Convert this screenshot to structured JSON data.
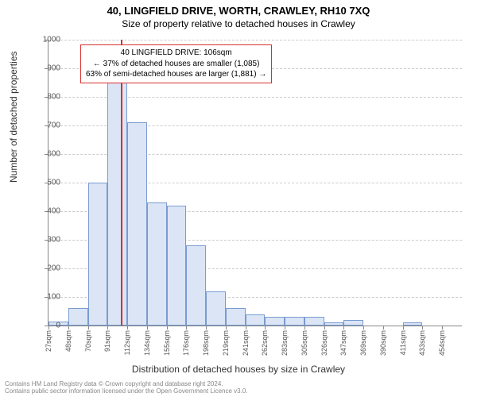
{
  "title": "40, LINGFIELD DRIVE, WORTH, CRAWLEY, RH10 7XQ",
  "subtitle": "Size of property relative to detached houses in Crawley",
  "ylabel": "Number of detached properties",
  "xlabel": "Distribution of detached houses by size in Crawley",
  "chart": {
    "type": "histogram",
    "ylim": [
      0,
      1000
    ],
    "ytick_step": 100,
    "background_color": "#ffffff",
    "grid_color": "#cccccc",
    "bar_fill": "#dbe5f5",
    "bar_border": "#7a9bd1",
    "marker_color": "#d73030",
    "marker_x": 106,
    "x_min": 27,
    "x_bin_width": 21.4,
    "bin_count": 21,
    "values": [
      15,
      60,
      500,
      850,
      710,
      430,
      420,
      280,
      120,
      60,
      40,
      30,
      30,
      30,
      10,
      20,
      0,
      0,
      10,
      0,
      0
    ],
    "xticks": [
      "27sqm",
      "48sqm",
      "70sqm",
      "91sqm",
      "112sqm",
      "134sqm",
      "155sqm",
      "176sqm",
      "198sqm",
      "219sqm",
      "241sqm",
      "262sqm",
      "283sqm",
      "305sqm",
      "326sqm",
      "347sqm",
      "369sqm",
      "390sqm",
      "411sqm",
      "433sqm",
      "454sqm"
    ]
  },
  "info_box": {
    "line1": "40 LINGFIELD DRIVE: 106sqm",
    "line2": "← 37% of detached houses are smaller (1,085)",
    "line3": "63% of semi-detached houses are larger (1,881) →"
  },
  "footer": {
    "line1": "Contains HM Land Registry data © Crown copyright and database right 2024.",
    "line2": "Contains public sector information licensed under the Open Government Licence v3.0."
  }
}
